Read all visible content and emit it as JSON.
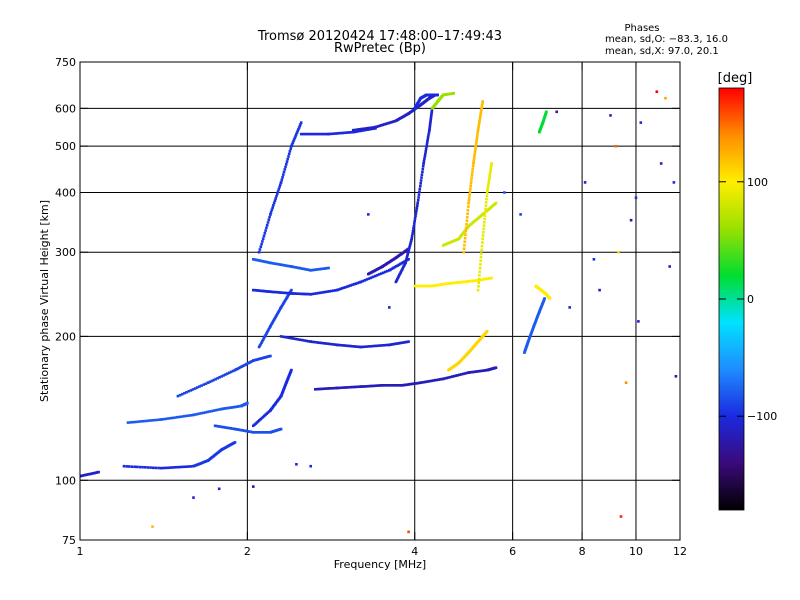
{
  "chart_data": {
    "type": "scatter",
    "title": "Tromsø 20120424 17:48:00–17:49:43",
    "subtitle": "RwPretec (Bp)",
    "xlabel": "Frequency [MHz]",
    "ylabel": "Stationary phase Virtual Height [km]",
    "x_scale": "log",
    "y_scale": "log",
    "xlim": [
      1,
      12
    ],
    "ylim": [
      75,
      750
    ],
    "x_ticks": [
      1,
      2,
      4,
      6,
      8,
      10,
      12
    ],
    "x_tick_labels": [
      "1",
      "2",
      "4",
      "6",
      "8",
      "10",
      "12"
    ],
    "y_ticks": [
      75,
      100,
      200,
      300,
      400,
      500,
      600,
      750
    ],
    "y_tick_labels": [
      "75",
      "100",
      "200",
      "300",
      "400",
      "500",
      "600",
      "750"
    ],
    "x_grid": [
      2,
      4,
      6,
      8,
      10
    ],
    "y_grid": [
      100,
      200,
      300,
      400,
      500,
      600
    ],
    "legend": {
      "title": "Phases",
      "lines": [
        "mean, sd,O: −83.3, 16.0",
        "mean, sd,X:  97.0, 20.1"
      ],
      "position": "top-right"
    },
    "colorbar": {
      "label": "[deg]",
      "range": [
        -180,
        180
      ],
      "tick_values": [
        100,
        0,
        -100
      ],
      "tick_labels": [
        "100",
        "0",
        "−100"
      ],
      "colors": [
        "#000000",
        "#3a0a7a",
        "#1a2adf",
        "#1f8cff",
        "#00e2ff",
        "#00dd30",
        "#9be000",
        "#ffee00",
        "#ff8c00",
        "#ff0000"
      ]
    },
    "traces": [
      {
        "x": [
          1.0,
          1.08
        ],
        "y": [
          102,
          104
        ],
        "phase": -110
      },
      {
        "x": [
          1.2,
          1.4,
          1.6
        ],
        "y": [
          107,
          106,
          107
        ],
        "phase": -100
      },
      {
        "x": [
          1.6,
          1.7,
          1.8,
          1.9
        ],
        "y": [
          107,
          110,
          116,
          120
        ],
        "phase": -95
      },
      {
        "x": [
          1.22,
          1.4,
          1.6,
          1.8,
          1.95,
          2.0
        ],
        "y": [
          132,
          134,
          137,
          141,
          143,
          145
        ],
        "phase": -80
      },
      {
        "x": [
          1.5,
          1.7,
          1.9,
          2.05,
          2.2
        ],
        "y": [
          150,
          160,
          170,
          178,
          182
        ],
        "phase": -90
      },
      {
        "x": [
          1.75,
          1.9,
          2.05,
          2.2,
          2.3
        ],
        "y": [
          130,
          128,
          126,
          126,
          128
        ],
        "phase": -85
      },
      {
        "x": [
          2.05,
          2.2,
          2.3,
          2.35,
          2.4
        ],
        "y": [
          130,
          140,
          150,
          160,
          170
        ],
        "phase": -100
      },
      {
        "x": [
          2.1,
          2.2,
          2.3,
          2.4
        ],
        "y": [
          190,
          210,
          230,
          250
        ],
        "phase": -90
      },
      {
        "x": [
          2.1,
          2.2,
          2.3,
          2.4,
          2.5
        ],
        "y": [
          300,
          360,
          420,
          500,
          560
        ],
        "phase": -95
      },
      {
        "x": [
          2.05,
          2.2,
          2.4,
          2.6,
          2.8
        ],
        "y": [
          290,
          285,
          280,
          275,
          278
        ],
        "phase": -80
      },
      {
        "x": [
          2.05,
          2.2,
          2.4,
          2.6,
          2.9,
          3.2,
          3.6,
          3.9
        ],
        "y": [
          250,
          248,
          246,
          245,
          250,
          260,
          275,
          290
        ],
        "phase": -100
      },
      {
        "x": [
          2.3,
          2.6,
          2.9,
          3.2,
          3.6,
          3.9
        ],
        "y": [
          200,
          195,
          192,
          190,
          192,
          195
        ],
        "phase": -105
      },
      {
        "x": [
          2.5,
          2.8,
          3.1,
          3.4
        ],
        "y": [
          530,
          530,
          535,
          545
        ],
        "phase": -100
      },
      {
        "x": [
          3.1,
          3.4,
          3.7,
          3.9,
          4.1,
          4.25,
          4.35
        ],
        "y": [
          540,
          548,
          565,
          585,
          610,
          630,
          640
        ],
        "phase": -110
      },
      {
        "x": [
          2.65,
          2.9,
          3.2,
          3.5,
          3.8,
          4.1,
          4.5,
          5.0,
          5.4,
          5.6
        ],
        "y": [
          155,
          156,
          157,
          158,
          158,
          160,
          163,
          168,
          170,
          172
        ],
        "phase": -115
      },
      {
        "x": [
          3.3,
          3.5,
          3.7,
          3.9
        ],
        "y": [
          270,
          280,
          292,
          305
        ],
        "phase": -120
      },
      {
        "x": [
          3.7,
          3.85,
          3.95,
          4.05,
          4.15,
          4.25,
          4.3
        ],
        "y": [
          260,
          285,
          320,
          380,
          460,
          540,
          600
        ],
        "phase": -105
      },
      {
        "x": [
          4.0,
          4.1,
          4.2,
          4.3,
          4.4
        ],
        "y": [
          600,
          630,
          640,
          640,
          640
        ],
        "phase": -100
      },
      {
        "x": [
          4.5,
          4.8,
          5.0,
          5.3,
          5.6
        ],
        "y": [
          310,
          320,
          340,
          360,
          380
        ],
        "phase": 80
      },
      {
        "x": [
          4.0,
          4.3,
          4.6,
          4.9,
          5.2,
          5.5
        ],
        "y": [
          255,
          255,
          258,
          260,
          262,
          265
        ],
        "phase": 100
      },
      {
        "x": [
          4.6,
          4.8,
          5.0,
          5.2,
          5.4
        ],
        "y": [
          170,
          176,
          185,
          195,
          205
        ],
        "phase": 110
      },
      {
        "x": [
          4.9,
          5.0,
          5.1,
          5.2,
          5.3
        ],
        "y": [
          300,
          380,
          460,
          540,
          620
        ],
        "phase": 120
      },
      {
        "x": [
          5.2,
          5.3,
          5.4,
          5.5
        ],
        "y": [
          250,
          320,
          400,
          460
        ],
        "phase": 90
      },
      {
        "x": [
          4.3,
          4.4,
          4.5,
          4.7
        ],
        "y": [
          600,
          620,
          640,
          645
        ],
        "phase": 60
      },
      {
        "x": [
          6.3,
          6.4,
          6.55,
          6.7,
          6.85
        ],
        "y": [
          185,
          195,
          210,
          225,
          240
        ],
        "phase": -80
      },
      {
        "x": [
          6.6,
          6.75,
          6.9,
          7.0
        ],
        "y": [
          255,
          250,
          245,
          240
        ],
        "phase": 100
      },
      {
        "x": [
          6.7,
          6.8,
          6.9
        ],
        "y": [
          535,
          560,
          590
        ],
        "phase": 20
      }
    ],
    "scattered_points": [
      {
        "x": 1.35,
        "y": 80,
        "phase": 120
      },
      {
        "x": 1.6,
        "y": 92,
        "phase": -110
      },
      {
        "x": 1.78,
        "y": 96,
        "phase": -110
      },
      {
        "x": 2.05,
        "y": 97,
        "phase": -120
      },
      {
        "x": 2.45,
        "y": 108,
        "phase": -100
      },
      {
        "x": 2.6,
        "y": 107,
        "phase": -100
      },
      {
        "x": 3.3,
        "y": 360,
        "phase": -100
      },
      {
        "x": 3.6,
        "y": 230,
        "phase": -100
      },
      {
        "x": 3.9,
        "y": 78,
        "phase": 160
      },
      {
        "x": 5.8,
        "y": 400,
        "phase": -80
      },
      {
        "x": 6.2,
        "y": 360,
        "phase": -90
      },
      {
        "x": 7.2,
        "y": 590,
        "phase": -120
      },
      {
        "x": 7.6,
        "y": 230,
        "phase": -100
      },
      {
        "x": 8.1,
        "y": 420,
        "phase": -110
      },
      {
        "x": 8.4,
        "y": 290,
        "phase": -100
      },
      {
        "x": 8.6,
        "y": 250,
        "phase": -120
      },
      {
        "x": 9.0,
        "y": 580,
        "phase": -110
      },
      {
        "x": 9.2,
        "y": 500,
        "phase": 150
      },
      {
        "x": 9.3,
        "y": 300,
        "phase": 110
      },
      {
        "x": 9.4,
        "y": 84,
        "phase": 170
      },
      {
        "x": 9.6,
        "y": 160,
        "phase": 140
      },
      {
        "x": 9.8,
        "y": 350,
        "phase": -120
      },
      {
        "x": 10.0,
        "y": 390,
        "phase": -100
      },
      {
        "x": 10.1,
        "y": 215,
        "phase": -110
      },
      {
        "x": 10.2,
        "y": 560,
        "phase": -100
      },
      {
        "x": 10.9,
        "y": 650,
        "phase": 180
      },
      {
        "x": 11.1,
        "y": 460,
        "phase": -110
      },
      {
        "x": 11.3,
        "y": 630,
        "phase": 130
      },
      {
        "x": 11.5,
        "y": 280,
        "phase": -110
      },
      {
        "x": 11.7,
        "y": 420,
        "phase": -100
      },
      {
        "x": 11.8,
        "y": 165,
        "phase": -120
      }
    ]
  }
}
